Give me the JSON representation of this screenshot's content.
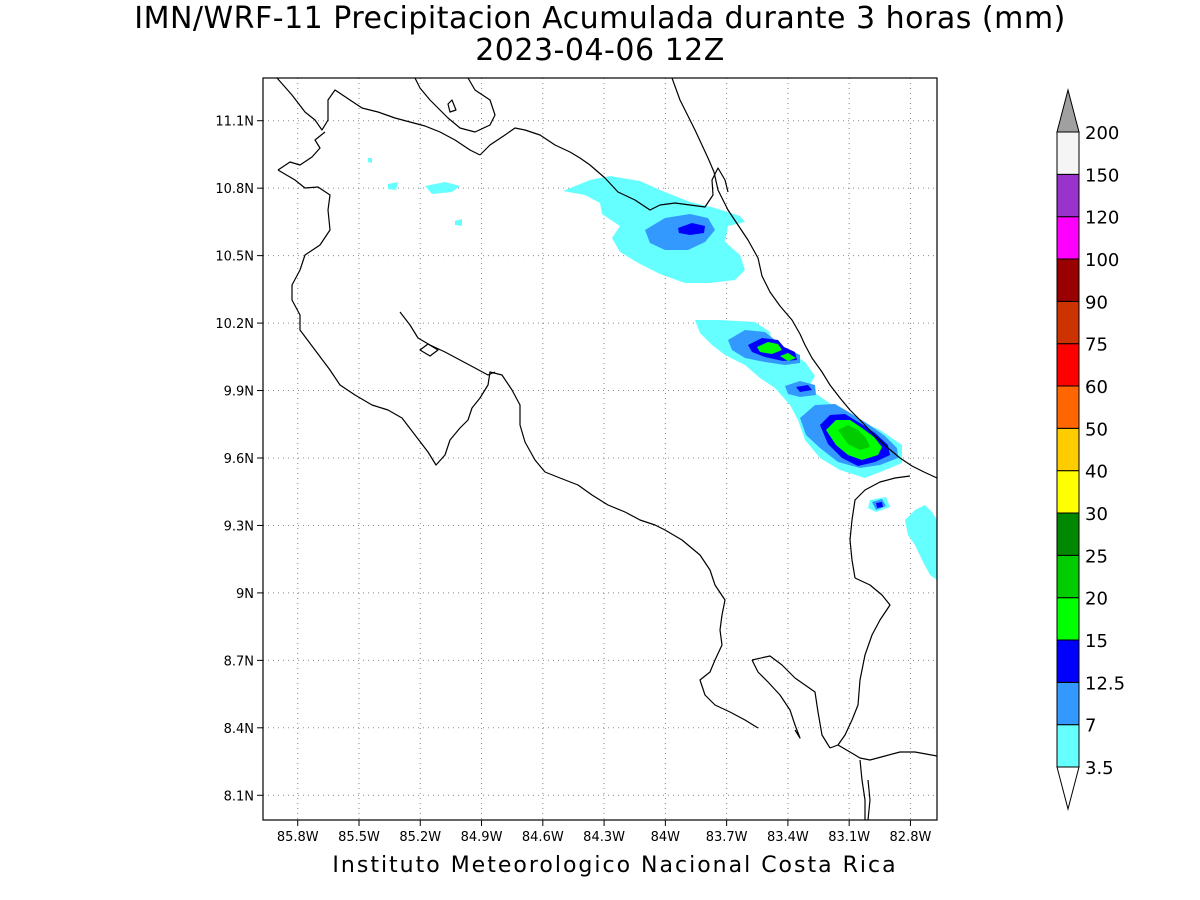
{
  "title": "IMN/WRF-11 Precipitacion Acumulada durante 3 horas (mm)",
  "subtitle": "2023-04-06 12Z",
  "footer": "Instituto Meteorologico Nacional Costa Rica",
  "map": {
    "lat_ticks": [
      {
        "value": 11.1,
        "label": "11.1N"
      },
      {
        "value": 10.8,
        "label": "10.8N"
      },
      {
        "value": 10.5,
        "label": "10.5N"
      },
      {
        "value": 10.2,
        "label": "10.2N"
      },
      {
        "value": 9.9,
        "label": "9.9N"
      },
      {
        "value": 9.6,
        "label": "9.6N"
      },
      {
        "value": 9.3,
        "label": "9.3N"
      },
      {
        "value": 9.0,
        "label": "9N"
      },
      {
        "value": 8.7,
        "label": "8.7N"
      },
      {
        "value": 8.4,
        "label": "8.4N"
      },
      {
        "value": 8.1,
        "label": "8.1N"
      }
    ],
    "lon_ticks": [
      {
        "value": -85.8,
        "label": "85.8W"
      },
      {
        "value": -85.5,
        "label": "85.5W"
      },
      {
        "value": -85.2,
        "label": "85.2W"
      },
      {
        "value": -84.9,
        "label": "84.9W"
      },
      {
        "value": -84.6,
        "label": "84.6W"
      },
      {
        "value": -84.3,
        "label": "84.3W"
      },
      {
        "value": -84.0,
        "label": "84W"
      },
      {
        "value": -83.7,
        "label": "83.7W"
      },
      {
        "value": -83.4,
        "label": "83.4W"
      },
      {
        "value": -83.1,
        "label": "83.1W"
      },
      {
        "value": -82.8,
        "label": "82.8W"
      }
    ],
    "lon_range": [
      -85.97,
      -82.67
    ],
    "lat_range": [
      7.99,
      11.29
    ]
  },
  "colorbar": {
    "levels": [
      "3.5",
      "7",
      "12.5",
      "15",
      "20",
      "25",
      "30",
      "40",
      "50",
      "60",
      "75",
      "90",
      "100",
      "120",
      "150",
      "200"
    ],
    "colors": [
      "#66ffff",
      "#3399ff",
      "#0000ff",
      "#00ff00",
      "#00cc00",
      "#008800",
      "#ffff00",
      "#ffcc00",
      "#ff6600",
      "#ff0000",
      "#cc3300",
      "#990000",
      "#ff00ff",
      "#9933cc",
      "#f5f5f5"
    ],
    "top_arrow_color": "#a0a0a0",
    "bottom_arrow_color": "#ffffff"
  }
}
